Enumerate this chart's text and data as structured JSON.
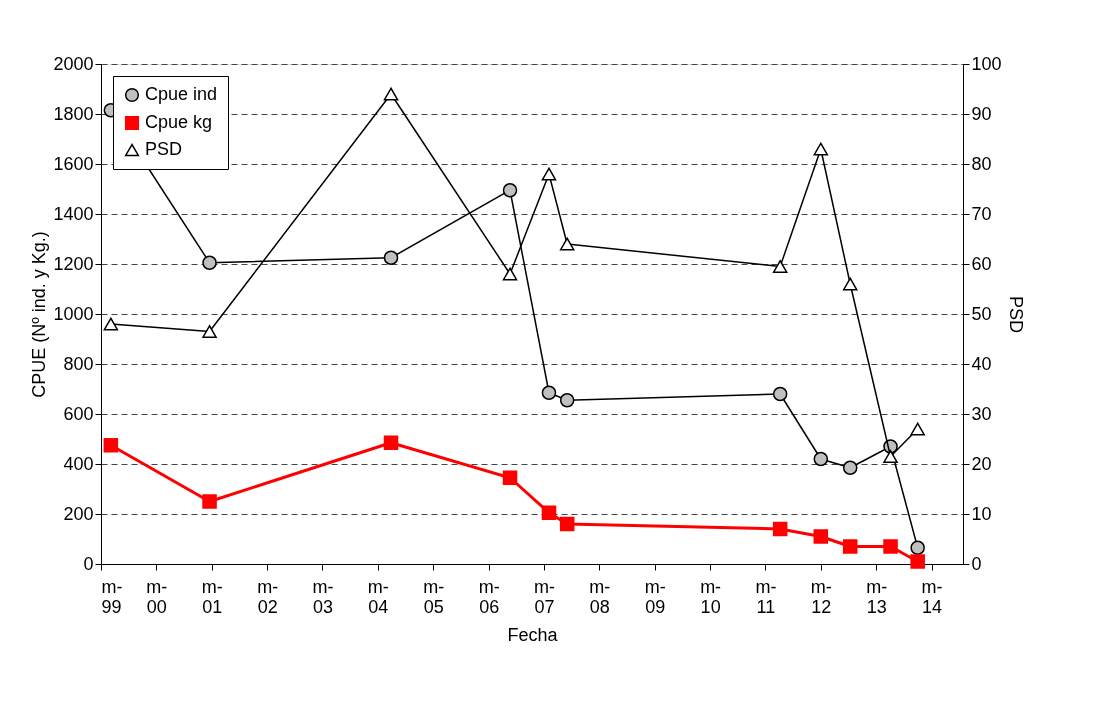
{
  "chart_data": {
    "type": "line",
    "xlabel": "Fecha",
    "ylabel": "CPUE (Nº ind. y Kg.)",
    "y2label": "PSD",
    "x": [
      "1999-03-07",
      "2000-12-17",
      "2004-03-28",
      "2006-05-22",
      "2007-02-03",
      "2007-06-03",
      "2011-04-08",
      "2012-01-01",
      "2012-07-13",
      "2013-04-05",
      "2013-10-01"
    ],
    "series": [
      {
        "name": "Cpue ind",
        "color": "#000000",
        "marker": "circle",
        "values": [
          1815,
          1205,
          1225,
          1495,
          685,
          655,
          680,
          420,
          385,
          470,
          65
        ]
      },
      {
        "name": "Cpue kg",
        "color": "#ff0000",
        "marker": "square",
        "values": [
          475,
          250,
          485,
          345,
          205,
          160,
          140,
          110,
          70,
          70,
          10
        ]
      },
      {
        "name": "PSD",
        "color": "#000000",
        "marker": "triangle",
        "axis": "y2",
        "values": [
          48,
          46.5,
          94,
          58,
          78,
          64,
          59.5,
          83,
          56,
          21.5,
          27
        ]
      }
    ],
    "xlim": [
      "1999",
      "2014-07-27"
    ],
    "xticks": [
      {
        "value": "1999",
        "label": "m-\n99"
      },
      {
        "value": "2000",
        "label": "m-\n00"
      },
      {
        "value": "2001",
        "label": "m-\n01"
      },
      {
        "value": "2002",
        "label": "m-\n02"
      },
      {
        "value": "2003",
        "label": "m-\n03"
      },
      {
        "value": "2004",
        "label": "m-\n04"
      },
      {
        "value": "2005",
        "label": "m-\n05"
      },
      {
        "value": "2006",
        "label": "m-\n06"
      },
      {
        "value": "2007",
        "label": "m-\n07"
      },
      {
        "value": "2008",
        "label": "m-\n08"
      },
      {
        "value": "2009",
        "label": "m-\n09"
      },
      {
        "value": "2010",
        "label": "m-\n10"
      },
      {
        "value": "2011",
        "label": "m-\n11"
      },
      {
        "value": "2012",
        "label": "m-\n12"
      },
      {
        "value": "2013",
        "label": "m-\n13"
      },
      {
        "value": "2014",
        "label": "m-\n14"
      }
    ],
    "ylim": [
      0,
      2000
    ],
    "yticks": [
      0,
      200,
      400,
      600,
      800,
      1000,
      1200,
      1400,
      1600,
      1800,
      2000
    ],
    "y2lim": [
      0,
      100
    ],
    "y2ticks": [
      0,
      10,
      20,
      30,
      40,
      50,
      60,
      70,
      80,
      90,
      100
    ],
    "grid": "y",
    "legend": "top left",
    "line_style": "solid"
  }
}
